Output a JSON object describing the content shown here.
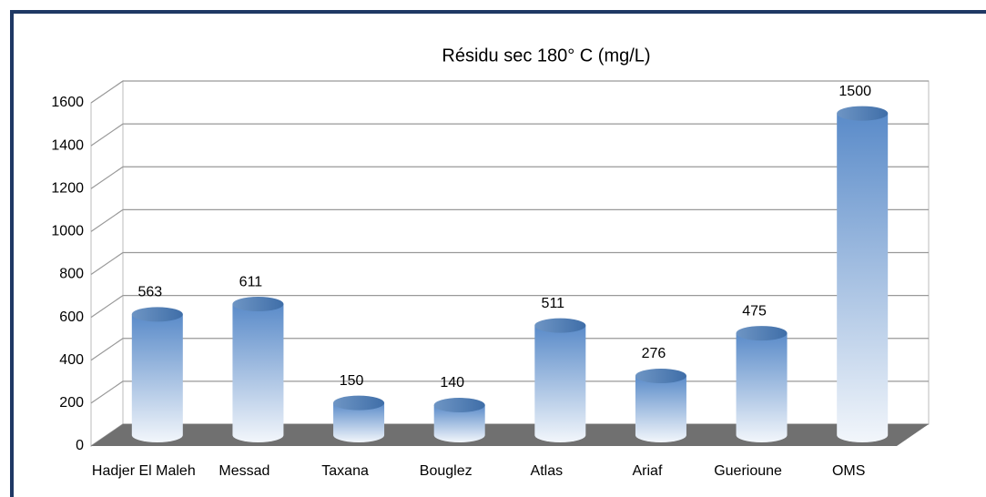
{
  "chart_data": {
    "type": "bar3d",
    "title": "Résidu sec 180° C  (mg/L)",
    "categories": [
      "Hadjer El Maleh",
      "Messad",
      "Taxana",
      "Bouglez",
      "Atlas",
      "Ariaf",
      "Guerioune",
      "OMS"
    ],
    "values": [
      563,
      611,
      150,
      140,
      511,
      276,
      475,
      1500
    ],
    "color": "#4f81bd",
    "ylim": [
      0,
      1600
    ],
    "yticks": [
      0,
      200,
      400,
      600,
      800,
      1000,
      1200,
      1400,
      1600
    ],
    "grid": true
  }
}
